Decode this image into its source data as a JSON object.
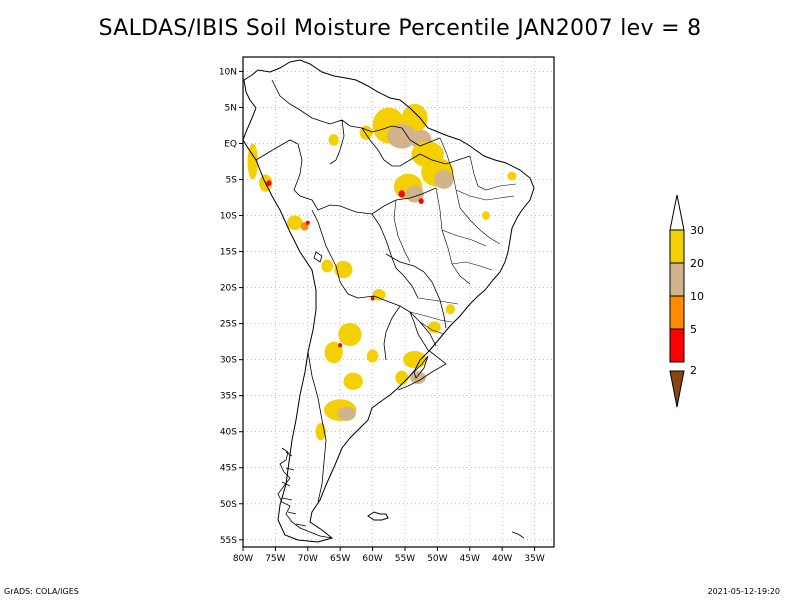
{
  "title": "SALDAS/IBIS Soil Moisture Percentile JAN2007 lev = 8",
  "footer_left": "GrADS: COLA/IGES",
  "footer_right": "2021-05-12-19:20",
  "map": {
    "lon_range": [
      -80,
      -32
    ],
    "lat_range": [
      -56,
      12
    ],
    "lon_ticks": [
      {
        "value": -80,
        "label": "80W"
      },
      {
        "value": -75,
        "label": "75W"
      },
      {
        "value": -70,
        "label": "70W"
      },
      {
        "value": -65,
        "label": "65W"
      },
      {
        "value": -60,
        "label": "60W"
      },
      {
        "value": -55,
        "label": "55W"
      },
      {
        "value": -50,
        "label": "50W"
      },
      {
        "value": -45,
        "label": "45W"
      },
      {
        "value": -40,
        "label": "40W"
      },
      {
        "value": -35,
        "label": "35W"
      }
    ],
    "lat_ticks": [
      {
        "value": 10,
        "label": "10N"
      },
      {
        "value": 5,
        "label": "5N"
      },
      {
        "value": 0,
        "label": "EQ"
      },
      {
        "value": -5,
        "label": "5S"
      },
      {
        "value": -10,
        "label": "10S"
      },
      {
        "value": -15,
        "label": "15S"
      },
      {
        "value": -20,
        "label": "20S"
      },
      {
        "value": -25,
        "label": "25S"
      },
      {
        "value": -30,
        "label": "30S"
      },
      {
        "value": -35,
        "label": "35S"
      },
      {
        "value": -40,
        "label": "40S"
      },
      {
        "value": -45,
        "label": "45S"
      },
      {
        "value": -50,
        "label": "50S"
      },
      {
        "value": -55,
        "label": "55S"
      }
    ],
    "grid": true
  },
  "legend": {
    "levels": [
      "30",
      "20",
      "10",
      "5",
      "2"
    ],
    "colors": {
      "above_30": "#ffffff",
      "20_30": "#f5d000",
      "10_20": "#d2b48c",
      "5_10": "#ff8c00",
      "2_5": "#ff0000",
      "below_2": "#8b4513"
    }
  },
  "patches": [
    {
      "cat": "20_30",
      "lon": -57.5,
      "lat": 2.5,
      "rx": 2.5,
      "ry": 2.5
    },
    {
      "cat": "20_30",
      "lon": -53.5,
      "lat": 3.5,
      "rx": 2.0,
      "ry": 2.0
    },
    {
      "cat": "10_20",
      "lon": -55.5,
      "lat": 1.0,
      "rx": 2.3,
      "ry": 1.7
    },
    {
      "cat": "10_20",
      "lon": -52.5,
      "lat": 0.5,
      "rx": 1.6,
      "ry": 1.4
    },
    {
      "cat": "20_30",
      "lon": -51.5,
      "lat": -1.5,
      "rx": 2.5,
      "ry": 1.8
    },
    {
      "cat": "20_30",
      "lon": -50.0,
      "lat": -4.0,
      "rx": 2.5,
      "ry": 2.0
    },
    {
      "cat": "10_20",
      "lon": -49.0,
      "lat": -5.0,
      "rx": 1.5,
      "ry": 1.3
    },
    {
      "cat": "20_30",
      "lon": -54.5,
      "lat": -6.0,
      "rx": 2.2,
      "ry": 1.8
    },
    {
      "cat": "10_20",
      "lon": -53.5,
      "lat": -7.0,
      "rx": 1.4,
      "ry": 1.2
    },
    {
      "cat": "2_5",
      "lon": -55.5,
      "lat": -7.0,
      "rx": 0.5,
      "ry": 0.5
    },
    {
      "cat": "2_5",
      "lon": -52.5,
      "lat": -8.0,
      "rx": 0.4,
      "ry": 0.4
    },
    {
      "cat": "20_30",
      "lon": -61.0,
      "lat": 1.5,
      "rx": 1.0,
      "ry": 1.0
    },
    {
      "cat": "20_30",
      "lon": -66.0,
      "lat": 0.5,
      "rx": 0.8,
      "ry": 0.8
    },
    {
      "cat": "20_30",
      "lon": -78.5,
      "lat": -2.5,
      "rx": 0.8,
      "ry": 2.5
    },
    {
      "cat": "20_30",
      "lon": -76.5,
      "lat": -5.5,
      "rx": 1.0,
      "ry": 1.2
    },
    {
      "cat": "2_5",
      "lon": -76.0,
      "lat": -5.5,
      "rx": 0.4,
      "ry": 0.4
    },
    {
      "cat": "20_30",
      "lon": -72.0,
      "lat": -11.0,
      "rx": 1.2,
      "ry": 1.0
    },
    {
      "cat": "5_10",
      "lon": -70.5,
      "lat": -11.5,
      "rx": 0.6,
      "ry": 0.6
    },
    {
      "cat": "2_5",
      "lon": -70.0,
      "lat": -11.0,
      "rx": 0.3,
      "ry": 0.3
    },
    {
      "cat": "20_30",
      "lon": -64.5,
      "lat": -17.5,
      "rx": 1.4,
      "ry": 1.2
    },
    {
      "cat": "20_30",
      "lon": -67.0,
      "lat": -17.0,
      "rx": 0.9,
      "ry": 0.9
    },
    {
      "cat": "20_30",
      "lon": -59.0,
      "lat": -21.0,
      "rx": 1.0,
      "ry": 0.8
    },
    {
      "cat": "2_5",
      "lon": -60.0,
      "lat": -21.5,
      "rx": 0.3,
      "ry": 0.3
    },
    {
      "cat": "20_30",
      "lon": -63.5,
      "lat": -26.5,
      "rx": 1.8,
      "ry": 1.6
    },
    {
      "cat": "20_30",
      "lon": -66.0,
      "lat": -29.0,
      "rx": 1.4,
      "ry": 1.5
    },
    {
      "cat": "2_5",
      "lon": -65.0,
      "lat": -28.0,
      "rx": 0.3,
      "ry": 0.3
    },
    {
      "cat": "20_30",
      "lon": -60.0,
      "lat": -29.5,
      "rx": 0.9,
      "ry": 0.9
    },
    {
      "cat": "20_30",
      "lon": -63.0,
      "lat": -33.0,
      "rx": 1.5,
      "ry": 1.2
    },
    {
      "cat": "20_30",
      "lon": -65.0,
      "lat": -37.0,
      "rx": 2.5,
      "ry": 1.5
    },
    {
      "cat": "10_20",
      "lon": -64.0,
      "lat": -37.5,
      "rx": 1.4,
      "ry": 1.0
    },
    {
      "cat": "20_30",
      "lon": -68.0,
      "lat": -40.0,
      "rx": 0.8,
      "ry": 1.2
    },
    {
      "cat": "20_30",
      "lon": -53.5,
      "lat": -30.0,
      "rx": 1.8,
      "ry": 1.2
    },
    {
      "cat": "10_20",
      "lon": -53.0,
      "lat": -32.5,
      "rx": 1.2,
      "ry": 0.9
    },
    {
      "cat": "20_30",
      "lon": -55.5,
      "lat": -32.5,
      "rx": 1.0,
      "ry": 1.0
    },
    {
      "cat": "20_30",
      "lon": -50.5,
      "lat": -25.5,
      "rx": 1.0,
      "ry": 0.8
    },
    {
      "cat": "20_30",
      "lon": -48.0,
      "lat": -23.0,
      "rx": 0.7,
      "ry": 0.7
    },
    {
      "cat": "20_30",
      "lon": -38.5,
      "lat": -4.5,
      "rx": 0.7,
      "ry": 0.6
    },
    {
      "cat": "20_30",
      "lon": -42.5,
      "lat": -10.0,
      "rx": 0.6,
      "ry": 0.6
    }
  ]
}
